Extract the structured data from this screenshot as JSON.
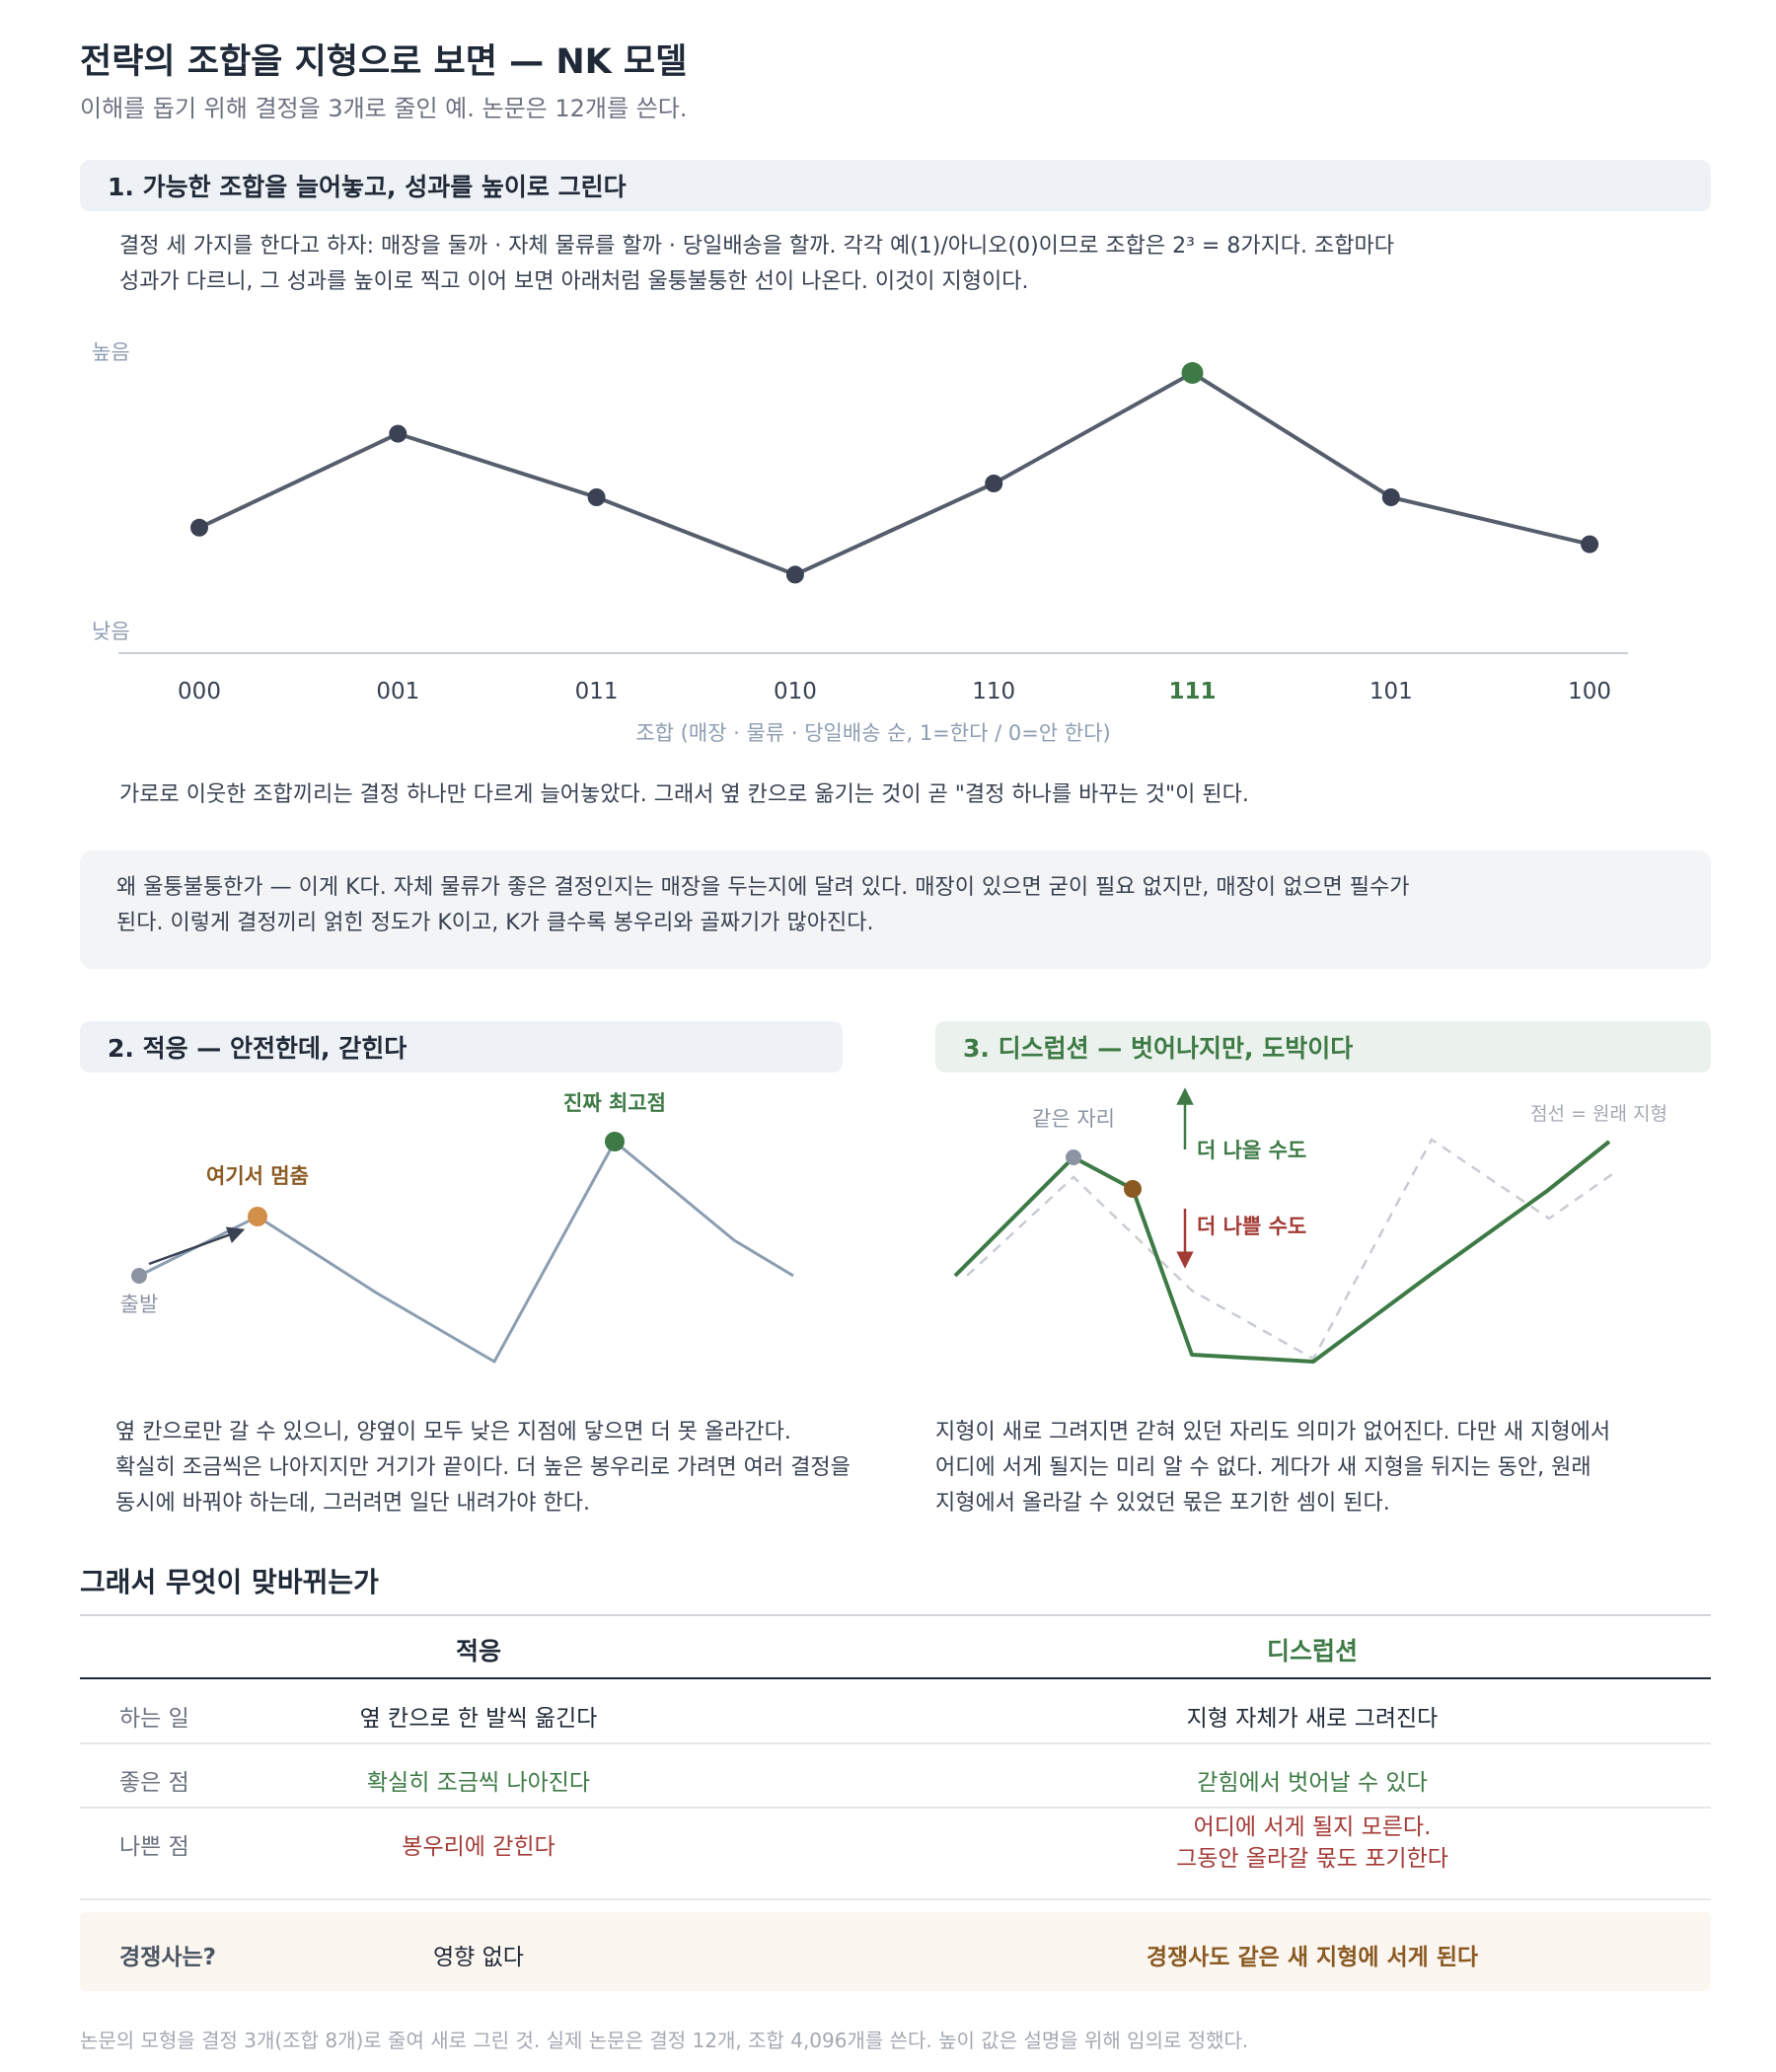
{
  "header": {
    "title": "전략의 조합을 지형으로 보면 — NK 모델",
    "subtitle": "이해를 돕기 위해 결정을 3개로 줄인 예. 논문은 12개를 쓴다."
  },
  "section1": {
    "heading": "1. 가능한 조합을 늘어놓고, 성과를 높이로 그린다",
    "intro_line1": "결정 세 가지를 한다고 하자: 매장을 둘까 · 자체 물류를 할까 · 당일배송을 할까. 각각 예(1)/아니오(0)이므로 조합은 2³ = 8가지다. 조합마다",
    "intro_line2": "성과가 다르니, 그 성과를 높이로 찍고 이어 보면 아래처럼 울퉁불퉁한 선이 나온다. 이것이 지형이다.",
    "after_chart": "가로로 이웃한 조합끼리는 결정 하나만 다르게 늘어놓았다. 그래서 옆 칸으로 옮기는 것이 곧 \"결정 하나를 바꾸는 것\"이 된다.",
    "k_note_line1": "왜 울퉁불퉁한가 — 이게 K다. 자체 물류가 좋은 결정인지는 매장을 두는지에 달려 있다. 매장이 있으면 굳이 필요 없지만, 매장이 없으면 필수가",
    "k_note_line2": "된다. 이렇게 결정끼리 얽힌 정도가 K이고, K가 클수록 봉우리와 골짜기가 많아진다."
  },
  "chart_data": {
    "type": "line",
    "categories": [
      "000",
      "001",
      "011",
      "010",
      "110",
      "111",
      "101",
      "100"
    ],
    "values": [
      44,
      78,
      55,
      27,
      60,
      100,
      55,
      38
    ],
    "highlight": "111",
    "ylabel_high": "높음",
    "ylabel_low": "낮음",
    "xlabel": "조합 (매장 · 물류 · 당일배송 순, 1=한다 / 0=안 한다)",
    "ylim": [
      0,
      100
    ],
    "colors": {
      "line": "#565d6b",
      "point": "#3a4254",
      "highlight": "#3d7a45"
    }
  },
  "section2": {
    "heading": "2. 적응 — 안전한데, 갇힌다",
    "label_start": "출발",
    "label_stop": "여기서 멈춤",
    "label_peak": "진짜 최고점",
    "desc_line1": "옆 칸으로만 갈 수 있으니, 양옆이 모두 낮은 지점에 닿으면 더 못 올라간다.",
    "desc_line2": "확실히 조금씩은 나아지지만 거기가 끝이다. 더 높은 봉우리로 가려면 여러 결정을",
    "desc_line3": "동시에 바꿔야 하는데, 그러려면 일단 내려가야 한다."
  },
  "section3": {
    "heading": "3. 디스럽션 — 벗어나지만, 도박이다",
    "label_same": "같은 자리",
    "label_dashed": "점선 = 원래 지형",
    "label_better": "더 나을 수도",
    "label_worse": "더 나쁠 수도",
    "desc_line1": "지형이 새로 그려지면 갇혀 있던 자리도 의미가 없어진다. 다만 새 지형에서",
    "desc_line2": "어디에 서게 될지는 미리 알 수 없다. 게다가 새 지형을 뒤지는 동안, 원래",
    "desc_line3": "지형에서 올라갈 수 있었던 몫은 포기한 셈이 된다."
  },
  "comparison": {
    "heading": "그래서 무엇이 맞바뀌는가",
    "col_adapt": "적응",
    "col_disrupt": "디스럽션",
    "rows": [
      {
        "label": "하는 일",
        "adapt": "옆 칸으로 한 발씩 옮긴다",
        "disrupt": "지형 자체가 새로 그려진다"
      },
      {
        "label": "좋은 점",
        "adapt": "확실히 조금씩 나아진다",
        "disrupt": "갇힘에서 벗어날 수 있다"
      },
      {
        "label": "나쁜 점",
        "adapt": "봉우리에 갇힌다",
        "disrupt_line1": "어디에 서게 될지 모른다.",
        "disrupt_line2": "그동안 올라갈 몫도 포기한다"
      }
    ],
    "competitor": {
      "label": "경쟁사는?",
      "adapt": "영향 없다",
      "disrupt": "경쟁사도 같은 새 지형에 서게 된다"
    }
  },
  "footer": {
    "note": "논문의 모형을 결정 3개(조합 8개)로 줄여 새로 그린 것. 실제 논문은 결정 12개, 조합 4,096개를 쓴다. 높이 값은 설명을 위해 임의로 정했다."
  },
  "colors": {
    "green": "#3d7a45",
    "orange": "#8a5a22",
    "red": "#a33a35",
    "slate": "#8c9db1"
  }
}
